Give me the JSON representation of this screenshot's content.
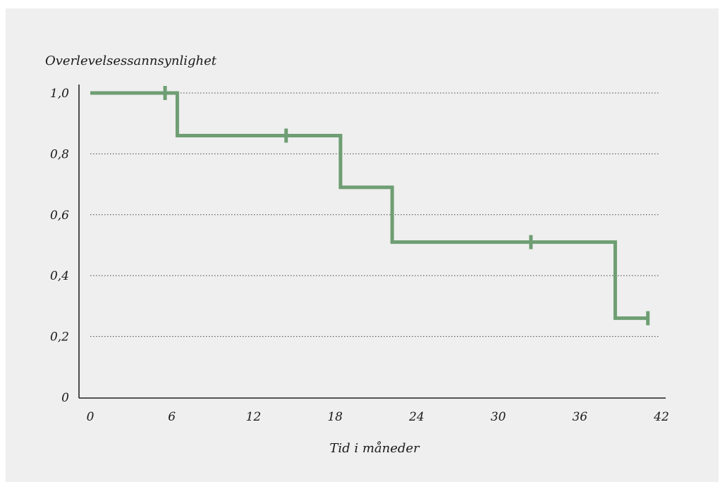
{
  "chart_data": {
    "type": "line",
    "step": true,
    "ylabel": "Overlevelsessannsynlighet",
    "xlabel": "Tid i måneder",
    "xlim": [
      0,
      42
    ],
    "ylim": [
      0,
      1
    ],
    "x_ticks": [
      0,
      6,
      12,
      18,
      24,
      30,
      36,
      42
    ],
    "x_tick_labels": [
      "0",
      "6",
      "12",
      "18",
      "24",
      "30",
      "36",
      "42"
    ],
    "y_ticks": [
      0,
      0.2,
      0.4,
      0.6,
      0.8,
      1.0
    ],
    "y_tick_labels": [
      "0",
      "0,2",
      "0,4",
      "0,6",
      "0,8",
      "1,0"
    ],
    "grid": "horizontal dotted",
    "line_color": "#6e9e73",
    "series": [
      {
        "steps": [
          {
            "x": 0,
            "y": 1.0
          },
          {
            "x": 6.4,
            "y": 0.86
          },
          {
            "x": 18.4,
            "y": 0.69
          },
          {
            "x": 22.2,
            "y": 0.51
          },
          {
            "x": 38.6,
            "y": 0.26
          },
          {
            "x": 41,
            "y": 0.26
          }
        ],
        "censored": [
          {
            "x": 5.5,
            "y": 1.0
          },
          {
            "x": 14.4,
            "y": 0.86
          },
          {
            "x": 32.4,
            "y": 0.51
          },
          {
            "x": 41,
            "y": 0.26
          }
        ]
      }
    ]
  }
}
